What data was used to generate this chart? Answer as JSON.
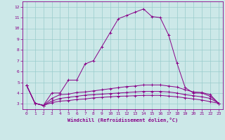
{
  "xlabel": "Windchill (Refroidissement éolien,°C)",
  "xlim": [
    -0.5,
    23.5
  ],
  "ylim": [
    2.5,
    12.5
  ],
  "xticks": [
    0,
    1,
    2,
    3,
    4,
    5,
    6,
    7,
    8,
    9,
    10,
    11,
    12,
    13,
    14,
    15,
    16,
    17,
    18,
    19,
    20,
    21,
    22,
    23
  ],
  "yticks": [
    3,
    4,
    5,
    6,
    7,
    8,
    9,
    10,
    11,
    12
  ],
  "background_color": "#cce8e8",
  "line_color": "#880088",
  "grid_color": "#99cccc",
  "lines": [
    {
      "x": [
        0,
        1,
        2,
        3,
        4,
        5,
        6,
        7,
        8,
        9,
        10,
        11,
        12,
        13,
        14,
        15,
        16,
        17,
        18,
        19,
        20,
        21,
        22,
        23
      ],
      "y": [
        4.7,
        3.05,
        2.85,
        4.0,
        4.0,
        5.2,
        5.2,
        6.7,
        7.0,
        8.3,
        9.6,
        10.9,
        11.2,
        11.5,
        11.8,
        11.1,
        11.0,
        9.4,
        6.8,
        4.5,
        4.0,
        4.0,
        3.7,
        3.05
      ]
    },
    {
      "x": [
        0,
        1,
        2,
        3,
        4,
        5,
        6,
        7,
        8,
        9,
        10,
        11,
        12,
        13,
        14,
        15,
        16,
        17,
        18,
        19,
        20,
        21,
        22,
        23
      ],
      "y": [
        4.7,
        3.05,
        2.85,
        3.5,
        3.85,
        3.9,
        4.05,
        4.1,
        4.2,
        4.3,
        4.4,
        4.5,
        4.6,
        4.65,
        4.75,
        4.75,
        4.75,
        4.65,
        4.55,
        4.3,
        4.1,
        4.05,
        3.85,
        3.05
      ]
    },
    {
      "x": [
        0,
        1,
        2,
        3,
        4,
        5,
        6,
        7,
        8,
        9,
        10,
        11,
        12,
        13,
        14,
        15,
        16,
        17,
        18,
        19,
        20,
        21,
        22,
        23
      ],
      "y": [
        4.7,
        3.05,
        2.85,
        3.25,
        3.5,
        3.6,
        3.7,
        3.8,
        3.85,
        3.9,
        3.95,
        4.0,
        4.05,
        4.1,
        4.15,
        4.15,
        4.15,
        4.1,
        4.0,
        3.85,
        3.75,
        3.65,
        3.5,
        3.05
      ]
    },
    {
      "x": [
        0,
        1,
        2,
        3,
        4,
        5,
        6,
        7,
        8,
        9,
        10,
        11,
        12,
        13,
        14,
        15,
        16,
        17,
        18,
        19,
        20,
        21,
        22,
        23
      ],
      "y": [
        4.7,
        3.05,
        2.85,
        3.1,
        3.25,
        3.3,
        3.4,
        3.45,
        3.55,
        3.6,
        3.65,
        3.7,
        3.72,
        3.75,
        3.78,
        3.78,
        3.78,
        3.72,
        3.65,
        3.55,
        3.45,
        3.35,
        3.2,
        3.05
      ]
    }
  ]
}
